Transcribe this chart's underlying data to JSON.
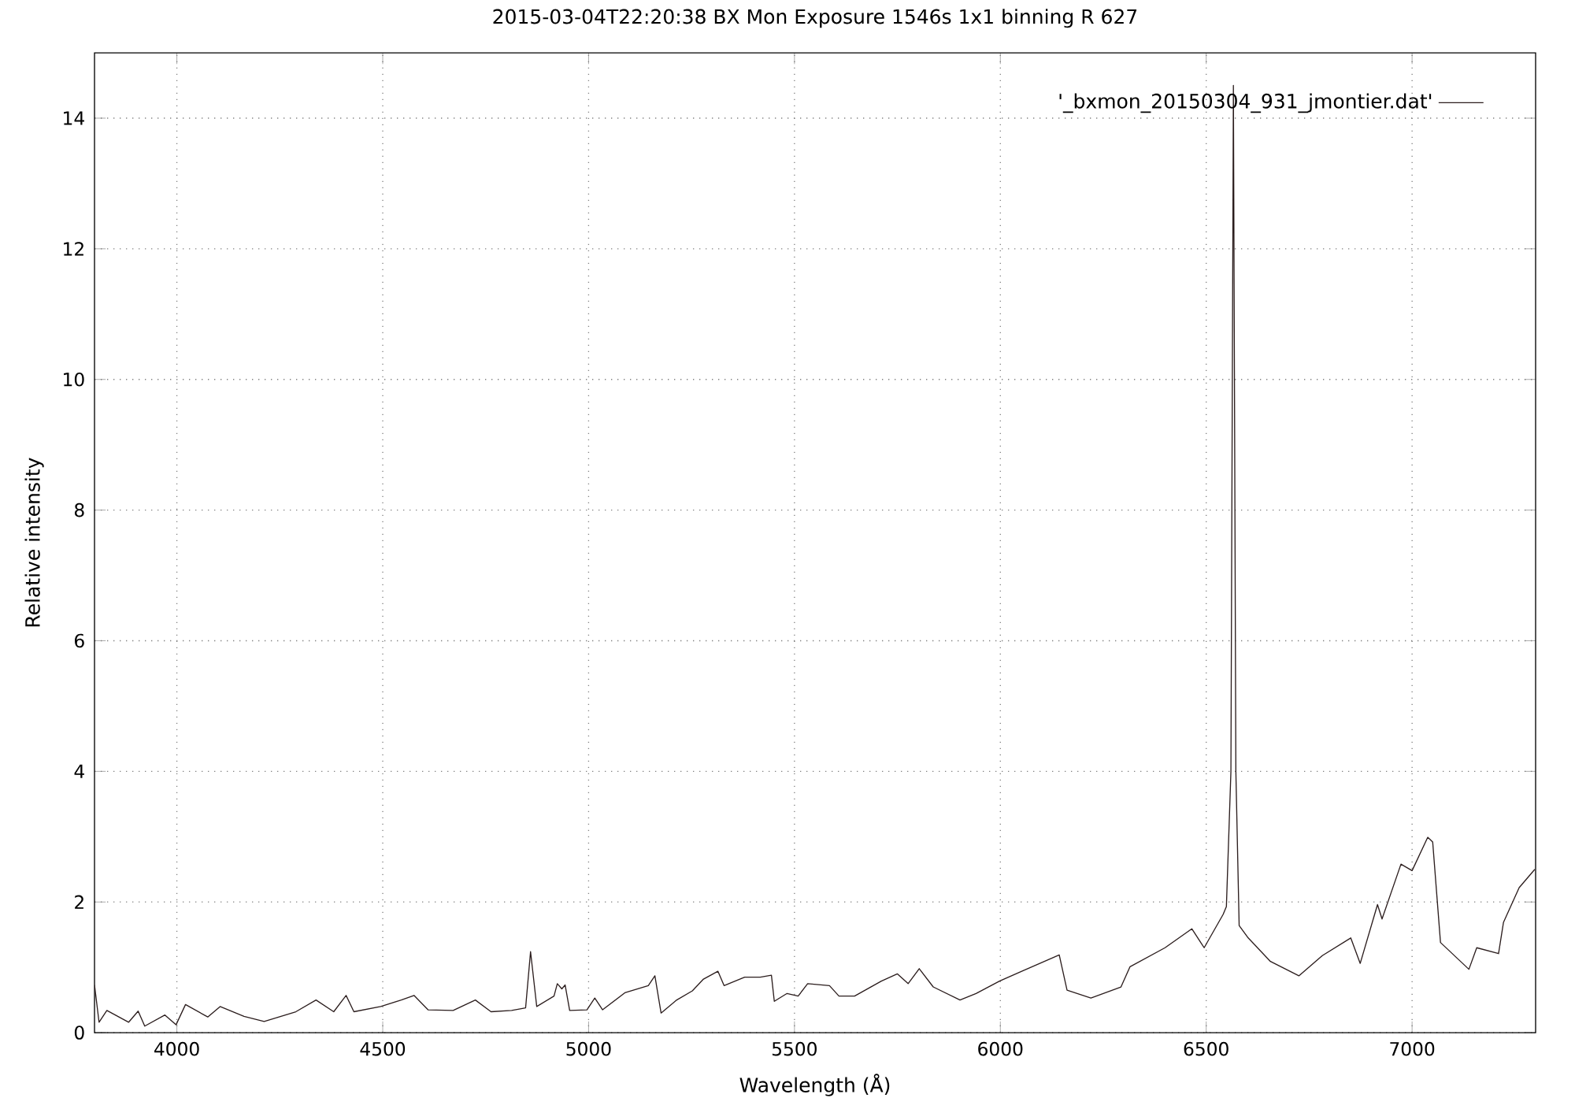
{
  "chart_data": {
    "type": "line",
    "title": "2015-03-04T22:20:38 BX Mon Exposure 1546s 1x1 binning R 627",
    "xlabel": "Wavelength (Å)",
    "ylabel": "Relative intensity",
    "xlim": [
      3800,
      7300
    ],
    "xticks": [
      4000,
      4500,
      5000,
      5500,
      6000,
      6500,
      7000
    ],
    "ylim": [
      0,
      15
    ],
    "yticks": [
      0,
      2,
      4,
      6,
      8,
      10,
      12,
      14
    ],
    "grid": true,
    "legend": "top right",
    "line_style": "solid",
    "marker": "none",
    "series": [
      {
        "name": "'_bxmon_20150304_931_jmontier.dat'",
        "color": "#2b1d1d",
        "x": [
          3800,
          3811,
          3830,
          3883,
          3906,
          3922,
          3971,
          3998,
          4021,
          4075,
          4105,
          4163,
          4212,
          4289,
          4338,
          4381,
          4411,
          4430,
          4495,
          4545,
          4576,
          4610,
          4671,
          4725,
          4763,
          4813,
          4847,
          4859,
          4874,
          4916,
          4924,
          4935,
          4943,
          4954,
          4996,
          5015,
          5034,
          5088,
          5145,
          5161,
          5176,
          5214,
          5252,
          5279,
          5314,
          5329,
          5379,
          5417,
          5444,
          5451,
          5482,
          5509,
          5532,
          5585,
          5608,
          5646,
          5711,
          5750,
          5776,
          5803,
          5837,
          5902,
          5941,
          5998,
          6052,
          6143,
          6162,
          6220,
          6293,
          6315,
          6400,
          6465,
          6495,
          6541,
          6549,
          6560,
          6566,
          6572,
          6580,
          6602,
          6656,
          6725,
          6782,
          6851,
          6874,
          6916,
          6927,
          6973,
          7000,
          7038,
          7050,
          7069,
          7138,
          7157,
          7210,
          7222,
          7260,
          7298
        ],
        "values": [
          0.73,
          0.16,
          0.34,
          0.16,
          0.33,
          0.1,
          0.27,
          0.12,
          0.43,
          0.24,
          0.4,
          0.25,
          0.17,
          0.32,
          0.5,
          0.32,
          0.57,
          0.32,
          0.4,
          0.5,
          0.57,
          0.35,
          0.34,
          0.5,
          0.32,
          0.34,
          0.38,
          1.24,
          0.4,
          0.56,
          0.75,
          0.67,
          0.73,
          0.34,
          0.35,
          0.53,
          0.35,
          0.61,
          0.72,
          0.87,
          0.3,
          0.5,
          0.64,
          0.82,
          0.94,
          0.72,
          0.85,
          0.85,
          0.88,
          0.48,
          0.6,
          0.56,
          0.75,
          0.72,
          0.56,
          0.56,
          0.79,
          0.9,
          0.75,
          0.98,
          0.7,
          0.5,
          0.6,
          0.79,
          0.94,
          1.19,
          0.65,
          0.53,
          0.7,
          1.01,
          1.3,
          1.59,
          1.3,
          1.81,
          1.93,
          4.0,
          14.5,
          4.0,
          1.64,
          1.45,
          1.09,
          0.87,
          1.18,
          1.45,
          1.06,
          1.96,
          1.74,
          2.58,
          2.48,
          2.99,
          2.92,
          1.38,
          0.97,
          1.3,
          1.21,
          1.69,
          2.22,
          2.5
        ]
      }
    ]
  }
}
